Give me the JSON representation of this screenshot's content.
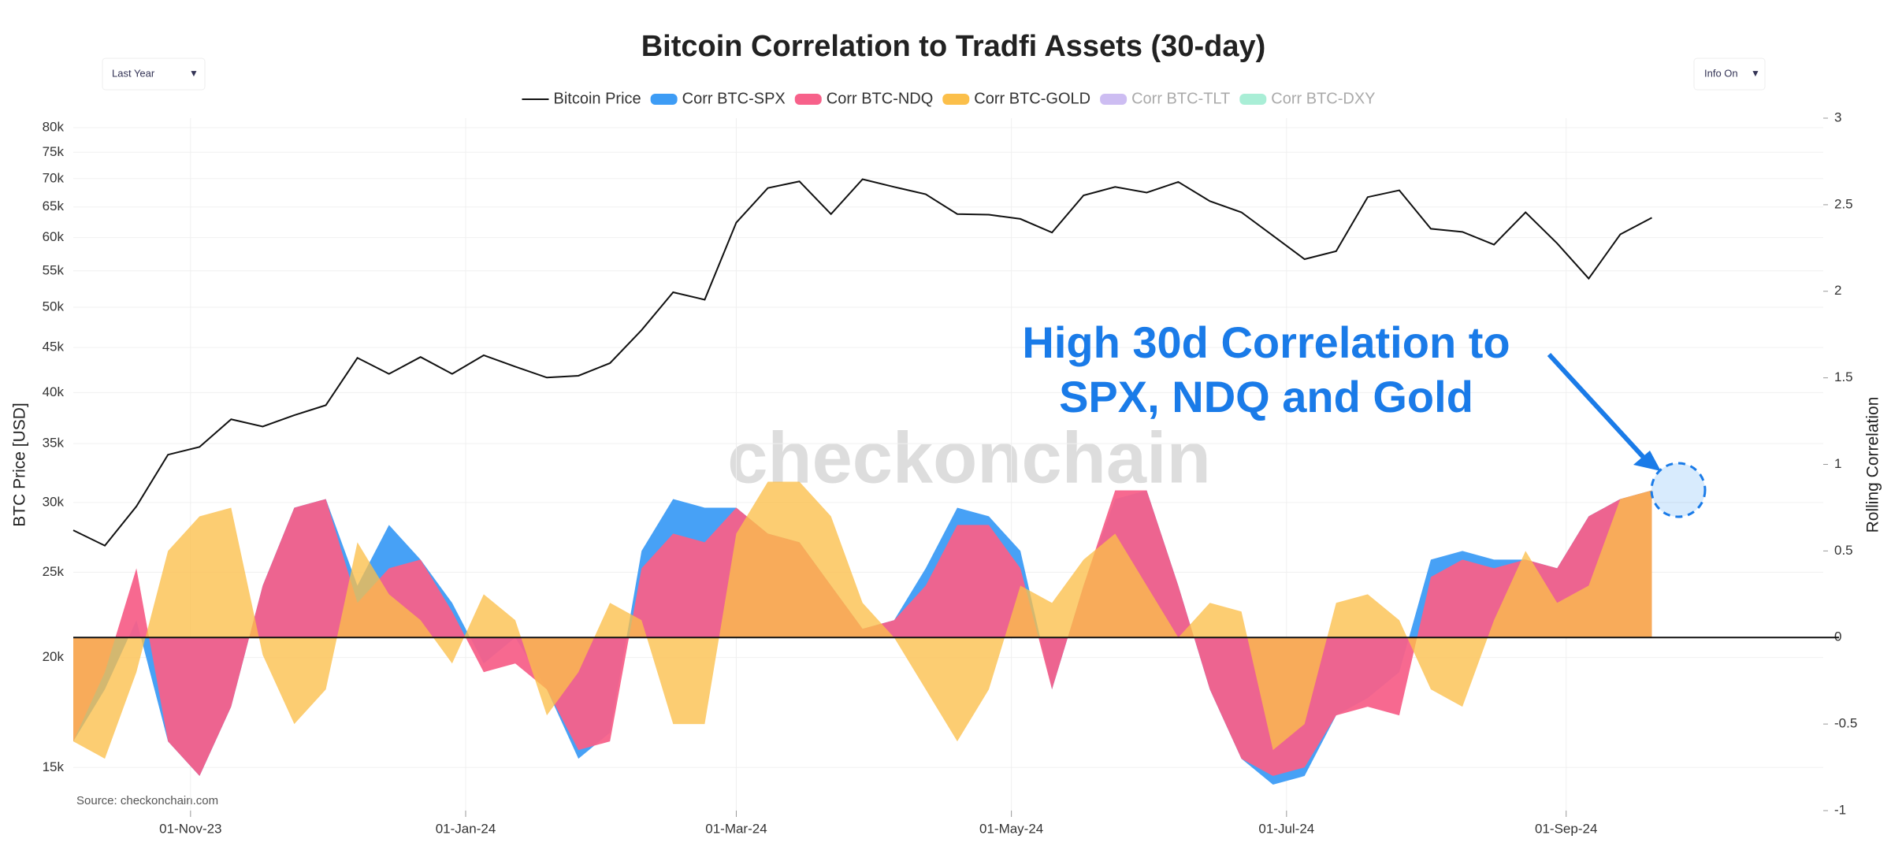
{
  "chart_data": {
    "type": "line_area",
    "title": "Bitcoin Correlation to Tradfi Assets (30-day)",
    "controls": {
      "range": "Last Year",
      "info": "Info On"
    },
    "ylabel": "BTC Price [USD]",
    "y2label": "Rolling Correlation",
    "annotation": [
      "High 30d Correlation to",
      "SPX, NDQ and Gold"
    ],
    "watermark": "checkonchain",
    "source": "Source: checkonchain.com",
    "ylog": true,
    "grid": true,
    "xlim": [
      "2023-10-06",
      "2024-10-28"
    ],
    "xticks": [
      {
        "value": "2023-11-01",
        "label": "01-Nov-23"
      },
      {
        "value": "2024-01-01",
        "label": "01-Jan-24"
      },
      {
        "value": "2024-03-01",
        "label": "01-Mar-24"
      },
      {
        "value": "2024-05-01",
        "label": "01-May-24"
      },
      {
        "value": "2024-07-01",
        "label": "01-Jul-24"
      },
      {
        "value": "2024-09-01",
        "label": "01-Sep-24"
      }
    ],
    "ylim": [
      13400,
      82000
    ],
    "yticks": [
      {
        "value": 15000,
        "label": "15k"
      },
      {
        "value": 20000,
        "label": "20k"
      },
      {
        "value": 25000,
        "label": "25k"
      },
      {
        "value": 30000,
        "label": "30k"
      },
      {
        "value": 35000,
        "label": "35k"
      },
      {
        "value": 40000,
        "label": "40k"
      },
      {
        "value": 45000,
        "label": "45k"
      },
      {
        "value": 50000,
        "label": "50k"
      },
      {
        "value": 55000,
        "label": "55k"
      },
      {
        "value": 60000,
        "label": "60k"
      },
      {
        "value": 65000,
        "label": "65k"
      },
      {
        "value": 70000,
        "label": "70k"
      },
      {
        "value": 75000,
        "label": "75k"
      },
      {
        "value": 80000,
        "label": "80k"
      }
    ],
    "y2lim": [
      -1,
      3
    ],
    "y2ticks": [
      -1,
      -0.5,
      0,
      0.5,
      1,
      1.5,
      2,
      2.5,
      3
    ],
    "x": [
      "2023-10-06",
      "2023-10-13",
      "2023-10-20",
      "2023-10-27",
      "2023-11-03",
      "2023-11-10",
      "2023-11-17",
      "2023-11-24",
      "2023-12-01",
      "2023-12-08",
      "2023-12-15",
      "2023-12-22",
      "2023-12-29",
      "2024-01-05",
      "2024-01-12",
      "2024-01-19",
      "2024-01-26",
      "2024-02-02",
      "2024-02-09",
      "2024-02-16",
      "2024-02-23",
      "2024-03-01",
      "2024-03-08",
      "2024-03-15",
      "2024-03-22",
      "2024-03-29",
      "2024-04-05",
      "2024-04-12",
      "2024-04-19",
      "2024-04-26",
      "2024-05-03",
      "2024-05-10",
      "2024-05-17",
      "2024-05-24",
      "2024-05-31",
      "2024-06-07",
      "2024-06-14",
      "2024-06-21",
      "2024-06-28",
      "2024-07-05",
      "2024-07-12",
      "2024-07-19",
      "2024-07-26",
      "2024-08-02",
      "2024-08-09",
      "2024-08-16",
      "2024-08-23",
      "2024-08-30",
      "2024-09-06",
      "2024-09-13",
      "2024-09-20"
    ],
    "series": [
      {
        "name": "Bitcoin Price",
        "color": "#111111",
        "values": [
          27900,
          26800,
          29700,
          34000,
          34700,
          37300,
          36600,
          37700,
          38700,
          43800,
          42000,
          43900,
          42000,
          44100,
          42800,
          41600,
          41800,
          43200,
          47100,
          52000,
          51000,
          62400,
          68300,
          69500,
          63800,
          69900,
          68500,
          67200,
          63800,
          63700,
          63000,
          60800,
          67000,
          68500,
          67500,
          69400,
          66000,
          64100,
          60300,
          56700,
          57900,
          66700,
          67900,
          61400,
          60900,
          58900,
          64100,
          59100,
          53900,
          60500,
          63200
        ]
      },
      {
        "name": "Corr BTC-SPX",
        "color": "#3d9cf5",
        "axis": "y2",
        "values": [
          -0.6,
          -0.3,
          0.1,
          -0.6,
          -0.8,
          -0.4,
          0.3,
          0.75,
          0.8,
          0.3,
          0.65,
          0.45,
          0.2,
          -0.15,
          0,
          -0.3,
          -0.7,
          -0.55,
          0.5,
          0.8,
          0.75,
          0.75,
          0.6,
          0.55,
          0.3,
          0.05,
          0.1,
          0.4,
          0.75,
          0.7,
          0.5,
          -0.3,
          0.3,
          0.8,
          0.85,
          0.3,
          -0.3,
          -0.7,
          -0.85,
          -0.8,
          -0.45,
          -0.35,
          -0.2,
          0.45,
          0.5,
          0.45,
          0.45,
          0.4,
          0.7,
          0.8,
          0.85
        ]
      },
      {
        "name": "Corr BTC-NDQ",
        "color": "#f7618a",
        "axis": "y2",
        "values": [
          -0.6,
          -0.2,
          0.4,
          -0.6,
          -0.8,
          -0.4,
          0.3,
          0.75,
          0.8,
          0.2,
          0.4,
          0.45,
          0.15,
          -0.2,
          -0.15,
          -0.3,
          -0.65,
          -0.6,
          0.4,
          0.6,
          0.55,
          0.75,
          0.6,
          0.55,
          0.3,
          0.05,
          0.1,
          0.3,
          0.65,
          0.65,
          0.4,
          -0.3,
          0.3,
          0.85,
          0.85,
          0.3,
          -0.3,
          -0.7,
          -0.8,
          -0.75,
          -0.45,
          -0.4,
          -0.45,
          0.35,
          0.45,
          0.4,
          0.45,
          0.4,
          0.7,
          0.8,
          0.85
        ]
      },
      {
        "name": "Corr BTC-GOLD",
        "color": "#fbbf4a",
        "axis": "y2",
        "values": [
          -0.6,
          -0.7,
          -0.2,
          0.5,
          0.7,
          0.75,
          -0.1,
          -0.5,
          -0.3,
          0.55,
          0.25,
          0.1,
          -0.15,
          0.25,
          0.1,
          -0.45,
          -0.2,
          0.2,
          0.1,
          -0.5,
          -0.5,
          0.6,
          0.9,
          0.9,
          0.7,
          0.2,
          0,
          -0.3,
          -0.6,
          -0.3,
          0.3,
          0.2,
          0.45,
          0.6,
          0.3,
          0,
          0.2,
          0.15,
          -0.65,
          -0.5,
          0.2,
          0.25,
          0.1,
          -0.3,
          -0.4,
          0.1,
          0.5,
          0.2,
          0.3,
          0.8,
          0.85
        ]
      }
    ],
    "inactive_legend": [
      {
        "name": "Corr BTC-TLT",
        "color": "#cdbdf2"
      },
      {
        "name": "Corr BTC-DXY",
        "color": "#a9eed6"
      }
    ]
  }
}
